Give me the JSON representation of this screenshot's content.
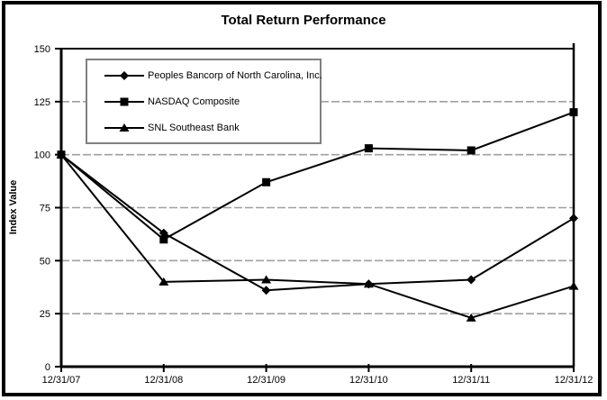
{
  "title": "Total Return Performance",
  "chart_data": {
    "type": "line",
    "title": "Total Return Performance",
    "xlabel": "",
    "ylabel": "Index Value",
    "categories": [
      "12/31/07",
      "12/31/08",
      "12/31/09",
      "12/31/10",
      "12/31/11",
      "12/31/12"
    ],
    "series": [
      {
        "name": "Peoples Bancorp of North Carolina, Inc.",
        "marker": "diamond",
        "values": [
          100,
          63,
          36,
          39,
          41,
          70
        ]
      },
      {
        "name": "NASDAQ Composite",
        "marker": "square",
        "values": [
          100,
          60,
          87,
          103,
          102,
          120
        ]
      },
      {
        "name": "SNL Southeast Bank",
        "marker": "triangle",
        "values": [
          100,
          40,
          41,
          39,
          23,
          38
        ]
      }
    ],
    "ylim": [
      0,
      150
    ],
    "y_ticks": [
      0,
      25,
      50,
      75,
      100,
      125,
      150
    ],
    "grid": "horizontal-dashed",
    "legend_position": "inside-top-left"
  },
  "colors": {
    "line": "#000000",
    "grid": "#a0a0a0",
    "axis": "#000000",
    "legend_border": "#808080",
    "frame": "#000000",
    "background": "#ffffff"
  }
}
